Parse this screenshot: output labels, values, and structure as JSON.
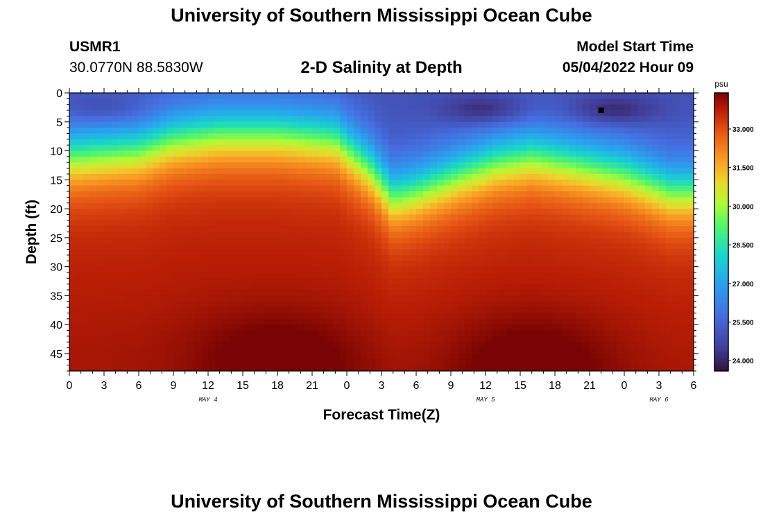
{
  "page": {
    "title": "University of Southern Mississippi Ocean Cube",
    "bottom_title": "University of Southern Mississippi Ocean Cube",
    "station": "USMR1",
    "coords": "30.0770N  88.5830W",
    "chart_title": "2-D Salinity at Depth",
    "model_start_label": "Model Start Time",
    "model_start_value": "05/04/2022 Hour 09"
  },
  "chart_data": {
    "type": "heatmap",
    "title": "2-D Salinity at Depth",
    "xlabel": "Forecast Time(Z)",
    "ylabel": "Depth (ft)",
    "x_ticks": [
      "0",
      "3",
      "6",
      "9",
      "12",
      "15",
      "18",
      "21",
      "0",
      "3",
      "6",
      "9",
      "12",
      "15",
      "18",
      "21",
      "0",
      "3",
      "6"
    ],
    "x_range_hours": [
      0,
      54
    ],
    "date_labels": [
      {
        "text": "MAY 4",
        "hour": 12
      },
      {
        "text": "MAY 5",
        "hour": 36
      },
      {
        "text": "MAY 6",
        "hour": 51
      }
    ],
    "y_ticks": [
      0,
      5,
      10,
      15,
      20,
      25,
      30,
      35,
      40,
      45
    ],
    "y_range": [
      0,
      48
    ],
    "y_inverted": true,
    "colorbar": {
      "unit": "psu",
      "range": [
        23.6,
        34.4
      ],
      "ticks": [
        "33.000",
        "31.500",
        "30.000",
        "28.500",
        "27.000",
        "25.500",
        "24.000"
      ],
      "tick_values": [
        33.0,
        31.5,
        30.0,
        28.5,
        27.0,
        25.5,
        24.0
      ]
    },
    "surface_salinity_psu": 25.0,
    "deep_salinity_psu": 33.6,
    "halocline_depth_ft": [
      {
        "hour": 0,
        "depth": 11
      },
      {
        "hour": 6,
        "depth": 10
      },
      {
        "hour": 9,
        "depth": 8
      },
      {
        "hour": 13,
        "depth": 7
      },
      {
        "hour": 18,
        "depth": 7
      },
      {
        "hour": 23,
        "depth": 8
      },
      {
        "hour": 26,
        "depth": 13
      },
      {
        "hour": 28,
        "depth": 18
      },
      {
        "hour": 30,
        "depth": 17
      },
      {
        "hour": 34,
        "depth": 14
      },
      {
        "hour": 37,
        "depth": 12
      },
      {
        "hour": 40,
        "depth": 11
      },
      {
        "hour": 43,
        "depth": 12
      },
      {
        "hour": 48,
        "depth": 14
      },
      {
        "hour": 52,
        "depth": 17
      },
      {
        "hour": 54,
        "depth": 17
      }
    ],
    "low_salinity_cores": [
      {
        "hour": 3,
        "depth": 3,
        "salinity": 24.3
      },
      {
        "hour": 36,
        "depth": 3,
        "salinity": 23.8
      },
      {
        "hour": 47,
        "depth": 3,
        "salinity": 23.8
      }
    ],
    "high_salinity_cores": [
      {
        "hour": 18,
        "depth": 47,
        "salinity": 34.4
      },
      {
        "hour": 40,
        "depth": 47,
        "salinity": 34.4
      }
    ],
    "marker": {
      "hour": 46,
      "depth": 3
    }
  },
  "colors": {
    "background": "#ffffff",
    "axis": "#000000"
  }
}
